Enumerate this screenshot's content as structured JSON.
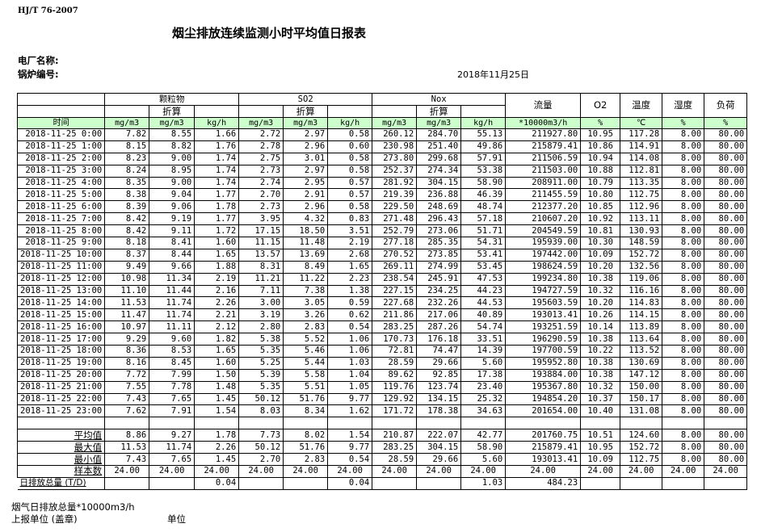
{
  "standard": "HJ/T  76-2007",
  "title": "烟尘排放连续监测小时平均值日报表",
  "plant_label": "电厂名称:",
  "boiler_label": "锅炉编号:",
  "report_date": "2018年11月25日",
  "header": {
    "groups": [
      "颗粒物",
      "SO2",
      "Nox",
      "流量",
      "O2",
      "温度",
      "湿度",
      "负荷"
    ],
    "converted": "折算",
    "time": "时间",
    "units": [
      "mg/m3",
      "mg/m3",
      "kg/h",
      "mg/m3",
      "mg/m3",
      "kg/h",
      "mg/m3",
      "mg/m3",
      "kg/h",
      "*10000m3/h",
      "%",
      "℃",
      "%",
      "%"
    ]
  },
  "rows": [
    [
      "2018-11-25 0:00",
      "7.82",
      "8.55",
      "1.66",
      "2.72",
      "2.97",
      "0.58",
      "260.12",
      "284.70",
      "55.13",
      "211927.80",
      "10.95",
      "117.28",
      "8.00",
      "80.00"
    ],
    [
      "2018-11-25 1:00",
      "8.15",
      "8.82",
      "1.76",
      "2.78",
      "2.96",
      "0.60",
      "230.98",
      "251.40",
      "49.86",
      "215879.41",
      "10.86",
      "114.91",
      "8.00",
      "80.00"
    ],
    [
      "2018-11-25 2:00",
      "8.23",
      "9.00",
      "1.74",
      "2.75",
      "3.01",
      "0.58",
      "273.80",
      "299.68",
      "57.91",
      "211506.59",
      "10.94",
      "114.08",
      "8.00",
      "80.00"
    ],
    [
      "2018-11-25 3:00",
      "8.24",
      "8.95",
      "1.74",
      "2.73",
      "2.97",
      "0.58",
      "252.37",
      "274.34",
      "53.38",
      "211503.00",
      "10.88",
      "112.81",
      "8.00",
      "80.00"
    ],
    [
      "2018-11-25 4:00",
      "8.35",
      "9.00",
      "1.74",
      "2.74",
      "2.95",
      "0.57",
      "281.92",
      "304.15",
      "58.90",
      "208911.00",
      "10.79",
      "113.35",
      "8.00",
      "80.00"
    ],
    [
      "2018-11-25 5:00",
      "8.38",
      "9.04",
      "1.77",
      "2.70",
      "2.91",
      "0.57",
      "219.39",
      "236.88",
      "46.39",
      "211455.59",
      "10.80",
      "112.75",
      "8.00",
      "80.00"
    ],
    [
      "2018-11-25 6:00",
      "8.39",
      "9.06",
      "1.78",
      "2.73",
      "2.96",
      "0.58",
      "229.50",
      "248.69",
      "48.74",
      "212377.20",
      "10.85",
      "112.96",
      "8.00",
      "80.00"
    ],
    [
      "2018-11-25 7:00",
      "8.42",
      "9.19",
      "1.77",
      "3.95",
      "4.32",
      "0.83",
      "271.48",
      "296.43",
      "57.18",
      "210607.20",
      "10.92",
      "113.11",
      "8.00",
      "80.00"
    ],
    [
      "2018-11-25 8:00",
      "8.42",
      "9.11",
      "1.72",
      "17.15",
      "18.50",
      "3.51",
      "252.79",
      "273.06",
      "51.71",
      "204549.59",
      "10.81",
      "130.93",
      "8.00",
      "80.00"
    ],
    [
      "2018-11-25 9:00",
      "8.18",
      "8.41",
      "1.60",
      "11.15",
      "11.48",
      "2.19",
      "277.18",
      "285.35",
      "54.31",
      "195939.00",
      "10.30",
      "148.59",
      "8.00",
      "80.00"
    ],
    [
      "2018-11-25 10:00",
      "8.37",
      "8.44",
      "1.65",
      "13.57",
      "13.69",
      "2.68",
      "270.52",
      "273.85",
      "53.41",
      "197442.00",
      "10.09",
      "152.72",
      "8.00",
      "80.00"
    ],
    [
      "2018-11-25 11:00",
      "9.49",
      "9.66",
      "1.88",
      "8.31",
      "8.49",
      "1.65",
      "269.11",
      "274.99",
      "53.45",
      "198624.59",
      "10.20",
      "132.56",
      "8.00",
      "80.00"
    ],
    [
      "2018-11-25 12:00",
      "10.98",
      "11.34",
      "2.19",
      "11.21",
      "11.22",
      "2.23",
      "238.54",
      "245.91",
      "47.53",
      "199234.80",
      "10.38",
      "119.06",
      "8.00",
      "80.00"
    ],
    [
      "2018-11-25 13:00",
      "11.10",
      "11.44",
      "2.16",
      "7.11",
      "7.38",
      "1.38",
      "227.15",
      "234.25",
      "44.23",
      "194727.59",
      "10.32",
      "116.16",
      "8.00",
      "80.00"
    ],
    [
      "2018-11-25 14:00",
      "11.53",
      "11.74",
      "2.26",
      "3.00",
      "3.05",
      "0.59",
      "227.68",
      "232.26",
      "44.53",
      "195603.59",
      "10.20",
      "114.83",
      "8.00",
      "80.00"
    ],
    [
      "2018-11-25 15:00",
      "11.47",
      "11.74",
      "2.21",
      "3.19",
      "3.26",
      "0.62",
      "211.86",
      "217.06",
      "40.89",
      "193013.41",
      "10.26",
      "114.15",
      "8.00",
      "80.00"
    ],
    [
      "2018-11-25 16:00",
      "10.97",
      "11.11",
      "2.12",
      "2.80",
      "2.83",
      "0.54",
      "283.25",
      "287.26",
      "54.74",
      "193251.59",
      "10.14",
      "113.89",
      "8.00",
      "80.00"
    ],
    [
      "2018-11-25 17:00",
      "9.29",
      "9.60",
      "1.82",
      "5.38",
      "5.52",
      "1.06",
      "170.73",
      "176.18",
      "33.51",
      "196290.59",
      "10.38",
      "113.64",
      "8.00",
      "80.00"
    ],
    [
      "2018-11-25 18:00",
      "8.36",
      "8.53",
      "1.65",
      "5.35",
      "5.46",
      "1.06",
      "72.81",
      "74.47",
      "14.39",
      "197700.59",
      "10.22",
      "113.52",
      "8.00",
      "80.00"
    ],
    [
      "2018-11-25 19:00",
      "8.16",
      "8.45",
      "1.60",
      "5.25",
      "5.44",
      "1.03",
      "28.59",
      "29.66",
      "5.60",
      "195952.80",
      "10.38",
      "130.69",
      "8.00",
      "80.00"
    ],
    [
      "2018-11-25 20:00",
      "7.72",
      "7.99",
      "1.50",
      "5.39",
      "5.58",
      "1.04",
      "89.62",
      "92.85",
      "17.38",
      "193884.00",
      "10.38",
      "147.12",
      "8.00",
      "80.00"
    ],
    [
      "2018-11-25 21:00",
      "7.55",
      "7.78",
      "1.48",
      "5.35",
      "5.51",
      "1.05",
      "119.76",
      "123.74",
      "23.40",
      "195367.80",
      "10.32",
      "150.00",
      "8.00",
      "80.00"
    ],
    [
      "2018-11-25 22:00",
      "7.43",
      "7.65",
      "1.45",
      "50.12",
      "51.76",
      "9.77",
      "129.92",
      "134.15",
      "25.32",
      "194854.20",
      "10.37",
      "150.17",
      "8.00",
      "80.00"
    ],
    [
      "2018-11-25 23:00",
      "7.62",
      "7.91",
      "1.54",
      "8.03",
      "8.34",
      "1.62",
      "171.72",
      "178.38",
      "34.63",
      "201654.00",
      "10.40",
      "131.08",
      "8.00",
      "80.00"
    ]
  ],
  "stats": [
    [
      "平均值",
      "8.86",
      "9.27",
      "1.78",
      "7.73",
      "8.02",
      "1.54",
      "210.87",
      "222.07",
      "42.77",
      "201760.75",
      "10.51",
      "124.60",
      "8.00",
      "80.00"
    ],
    [
      "最大值",
      "11.53",
      "11.74",
      "2.26",
      "50.12",
      "51.76",
      "9.77",
      "283.25",
      "304.15",
      "58.90",
      "215879.41",
      "10.95",
      "152.72",
      "8.00",
      "80.00"
    ],
    [
      "最小值",
      "7.43",
      "7.65",
      "1.45",
      "2.70",
      "2.83",
      "0.54",
      "28.59",
      "29.66",
      "5.60",
      "193013.41",
      "10.09",
      "112.75",
      "8.00",
      "80.00"
    ],
    [
      "样本数",
      "24.00",
      "24.00",
      "24.00",
      "24.00",
      "24.00",
      "24.00",
      "24.00",
      "24.00",
      "24.00",
      "24.00",
      "24.00",
      "24.00",
      "24.00",
      "24.00"
    ]
  ],
  "daily_total": [
    "日排放总量 (T/D)",
    "",
    "",
    "0.04",
    "",
    "",
    "0.04",
    "",
    "",
    "1.03",
    "484.23",
    "",
    "",
    "",
    ""
  ],
  "footer": {
    "flue_gas_total": "烟气日排放总量*10000m3/h",
    "reporting_unit": "上报单位 (盖章)",
    "unit": "单位"
  }
}
